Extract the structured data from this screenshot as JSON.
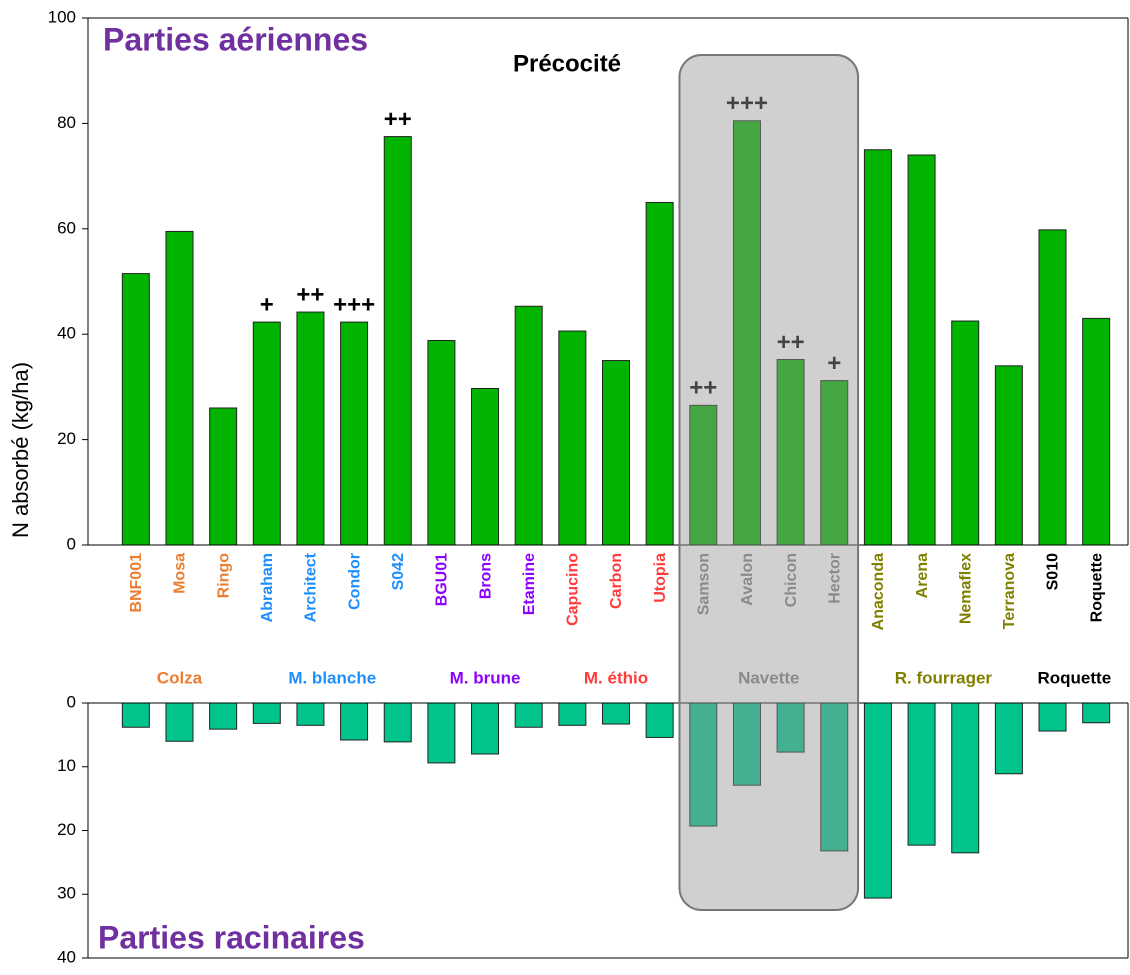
{
  "chart_data": {
    "type": "bar",
    "title": "Précocité",
    "y_label": "N absorbé (kg/ha)",
    "groups": [
      {
        "name": "Colza",
        "color": "#ED7D31",
        "categories": [
          "BNF001",
          "Mosa",
          "Ringo"
        ]
      },
      {
        "name": "M. blanche",
        "color": "#1E8FFF",
        "categories": [
          "Abraham",
          "Architect",
          "Condor",
          "S042"
        ]
      },
      {
        "name": "M. brune",
        "color": "#8B00FF",
        "categories": [
          "BGU01",
          "Brons",
          "Etamine"
        ]
      },
      {
        "name": "M. éthio",
        "color": "#FF3B3B",
        "categories": [
          "Capucino",
          "Carbon",
          "Utopia"
        ]
      },
      {
        "name": "Navette",
        "color": "#808080",
        "highlight": true,
        "categories": [
          "Samson",
          "Avalon",
          "Chicon",
          "Hector"
        ]
      },
      {
        "name": "R. fourrager",
        "color": "#808000",
        "categories": [
          "Anaconda",
          "Arena",
          "Nemaflex",
          "Terranova"
        ]
      },
      {
        "name": "Roquette",
        "color": "#000000",
        "categories": [
          "S010",
          "Roquette"
        ]
      }
    ],
    "series": [
      {
        "name": "Parties aériennes",
        "color": "#00B400",
        "values": [
          51.5,
          59.5,
          26,
          42.3,
          44.2,
          42.3,
          77.5,
          38.8,
          29.7,
          45.3,
          40.6,
          35,
          65,
          26.5,
          80.5,
          35.2,
          31.2,
          75,
          74,
          42.5,
          34,
          59.8,
          43
        ],
        "ylim": [
          0,
          100
        ],
        "yticks": [
          0,
          20,
          40,
          60,
          80,
          100
        ]
      },
      {
        "name": "Parties racinaires",
        "color": "#00C48C",
        "values": [
          3.8,
          6,
          4.1,
          3.2,
          3.5,
          5.8,
          6.1,
          9.4,
          8,
          3.8,
          3.5,
          3.3,
          5.4,
          19.3,
          12.9,
          7.7,
          23.2,
          30.6,
          22.3,
          23.5,
          11.1,
          4.4,
          3.1
        ],
        "ylim": [
          0,
          40
        ],
        "yticks": [
          0,
          10,
          20,
          30,
          40
        ]
      }
    ],
    "annotations": [
      {
        "category": "Abraham",
        "text": "+"
      },
      {
        "category": "Architect",
        "text": "++"
      },
      {
        "category": "Condor",
        "text": "+++"
      },
      {
        "category": "S042",
        "text": "++"
      },
      {
        "category": "Samson",
        "text": "++"
      },
      {
        "category": "Avalon",
        "text": "+++"
      },
      {
        "category": "Chicon",
        "text": "++"
      },
      {
        "category": "Hector",
        "text": "+"
      }
    ]
  }
}
